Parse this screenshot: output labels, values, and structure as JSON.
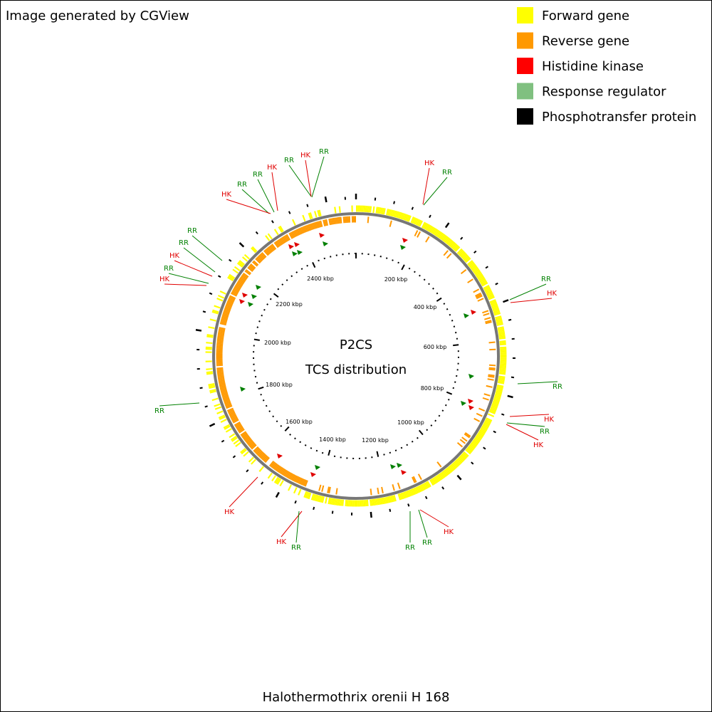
{
  "header": "Image generated by CGView",
  "legend": [
    {
      "label": "Forward gene",
      "color": "#ffff00"
    },
    {
      "label": "Reverse gene",
      "color": "#ff9900"
    },
    {
      "label": "Histidine kinase",
      "color": "#ff0000"
    },
    {
      "label": "Response regulator",
      "color": "#80c080"
    },
    {
      "label": "Phosphotransfer protein",
      "color": "#000000"
    }
  ],
  "center": {
    "title": "P2CS",
    "subtitle": "TCS distribution"
  },
  "scale_labels": [
    "200 kbp",
    "400 kbp",
    "600 kbp",
    "800 kbp",
    "1000 kbp",
    "1200 kbp",
    "1400 kbp",
    "1600 kbp",
    "1800 kbp",
    "2000 kbp",
    "2200 kbp",
    "2400 kbp"
  ],
  "callouts": [
    {
      "label": "RR",
      "color": "#008000"
    },
    {
      "label": "HK",
      "color": "#e00000"
    },
    {
      "label": "RR",
      "color": "#008000"
    },
    {
      "label": "RR",
      "color": "#008000"
    },
    {
      "label": "HK",
      "color": "#e00000"
    },
    {
      "label": "RR",
      "color": "#008000"
    },
    {
      "label": "HK",
      "color": "#e00000"
    },
    {
      "label": "RR",
      "color": "#008000"
    },
    {
      "label": "RR",
      "color": "#008000"
    },
    {
      "label": "HK",
      "color": "#e00000"
    },
    {
      "label": "RR",
      "color": "#008000"
    },
    {
      "label": "HK",
      "color": "#e00000"
    },
    {
      "label": "HK",
      "color": "#e00000"
    },
    {
      "label": "RR",
      "color": "#008000"
    },
    {
      "label": "RR",
      "color": "#008000"
    },
    {
      "label": "HK",
      "color": "#e00000"
    },
    {
      "label": "RR",
      "color": "#008000"
    },
    {
      "label": "HK",
      "color": "#e00000"
    },
    {
      "label": "RR",
      "color": "#008000"
    },
    {
      "label": "HK",
      "color": "#e00000"
    },
    {
      "label": "HK",
      "color": "#e00000"
    },
    {
      "label": "RR",
      "color": "#008000"
    },
    {
      "label": "RR",
      "color": "#008000"
    },
    {
      "label": "HK",
      "color": "#e00000"
    },
    {
      "label": "RR",
      "color": "#008000"
    },
    {
      "label": "HK",
      "color": "#e00000"
    },
    {
      "label": "RR",
      "color": "#008000"
    }
  ],
  "footer": "Halothermothrix orenii H 168"
}
